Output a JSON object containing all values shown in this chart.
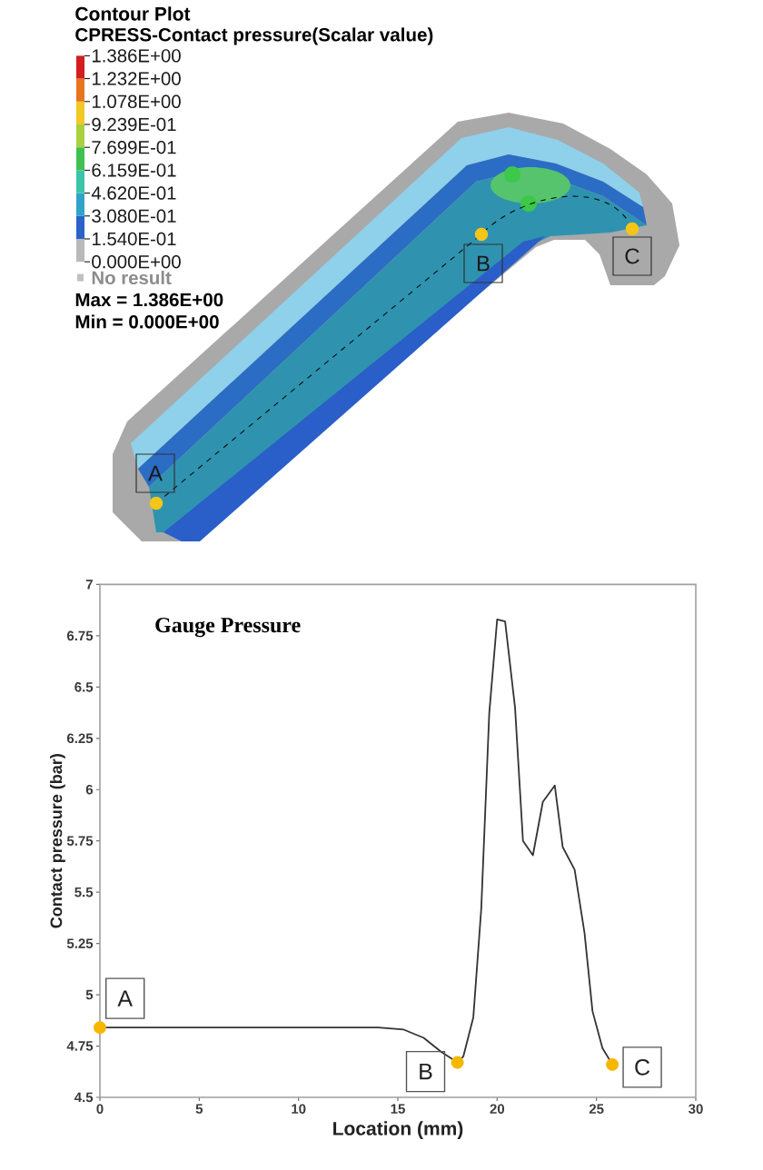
{
  "chart_data": [
    {
      "type": "other",
      "title": "Contour Plot",
      "subtitle": "CPRESS-Contact pressure(Scalar value)",
      "colors": [
        "#b9b9b9",
        "#2a62c8",
        "#30a4c8",
        "#3cc4a8",
        "#40c050",
        "#a8d040",
        "#f2c824",
        "#e8741e",
        "#d21e1e"
      ],
      "annotations": [
        "1.386E+00",
        "1.232E+00",
        "1.078E+00",
        "9.239E-01",
        "7.699E-01",
        "6.159E-01",
        "4.620E-01",
        "3.080E-01",
        "1.540E-01",
        "0.000E+00",
        "No result",
        "Max = 1.386E+00",
        "Min = 0.000E+00",
        "A",
        "B",
        "C"
      ]
    },
    {
      "type": "line",
      "title": "Gauge Pressure",
      "xlabel": "Location (mm)",
      "ylabel": "Contact pressure (bar)",
      "xlim": [
        0,
        30
      ],
      "ylim": [
        4.5,
        7
      ],
      "xticks": [
        0,
        5,
        10,
        15,
        20,
        25,
        30
      ],
      "yticks": [
        4.5,
        4.75,
        5,
        5.25,
        5.5,
        5.75,
        6,
        6.25,
        6.5,
        6.75,
        7
      ],
      "series": [
        {
          "type": "line",
          "color": "#333333",
          "x": [
            0,
            5,
            10,
            14,
            15.3,
            16.3,
            17.2,
            18,
            18.3,
            18.8,
            19.2,
            19.6,
            20,
            20.4,
            20.9,
            21.3,
            21.8,
            22.3,
            22.9,
            23.3,
            23.9,
            24.4,
            24.8,
            25.3,
            25.8
          ],
          "values": [
            4.84,
            4.84,
            4.84,
            4.84,
            4.83,
            4.79,
            4.72,
            4.67,
            4.7,
            4.89,
            5.42,
            6.37,
            6.83,
            6.82,
            6.4,
            5.75,
            5.68,
            5.94,
            6.02,
            5.72,
            5.61,
            5.3,
            4.92,
            4.74,
            4.66
          ]
        },
        {
          "type": "scatter",
          "color": "#f5b700",
          "marker": "circle",
          "x": [
            0,
            18,
            25.8
          ],
          "values": [
            4.84,
            4.67,
            4.66
          ]
        }
      ],
      "annotations": [
        {
          "text": "A",
          "x": 0,
          "y": 4.84
        },
        {
          "text": "B",
          "x": 18,
          "y": 4.67
        },
        {
          "text": "C",
          "x": 25.8,
          "y": 4.66
        }
      ]
    }
  ]
}
